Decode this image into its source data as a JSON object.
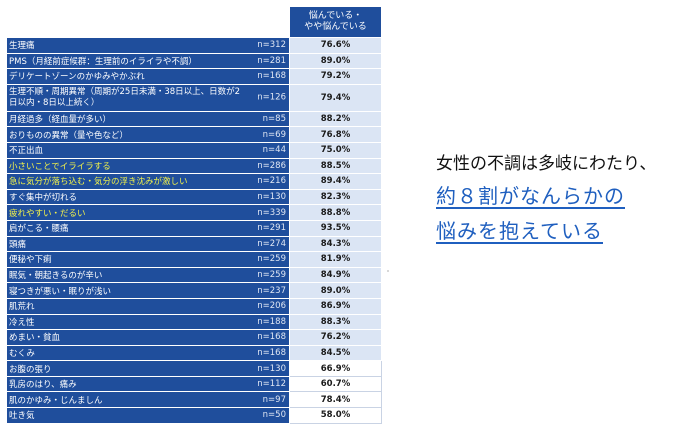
{
  "table": {
    "header": "悩んでいる・\nやや悩んでいる",
    "rows": [
      {
        "label": "生理痛",
        "n": "n=312",
        "value": "76.6%",
        "highlight": false,
        "shaded": true
      },
      {
        "label": "PMS（月経前症候群：生理前のイライラや不調）",
        "n": "n=281",
        "value": "89.0%",
        "highlight": false,
        "shaded": true
      },
      {
        "label": "デリケートゾーンのかゆみやかぶれ",
        "n": "n=168",
        "value": "79.2%",
        "highlight": false,
        "shaded": true
      },
      {
        "label": "生理不順・周期異常（周期が25日未満・38日以上、日数が2日以内・8日以上続く）",
        "n": "n=126",
        "value": "79.4%",
        "highlight": false,
        "shaded": true,
        "tall": true
      },
      {
        "label": "月経過多（経血量が多い）",
        "n": "n=85",
        "value": "88.2%",
        "highlight": false,
        "shaded": true
      },
      {
        "label": "おりものの異常（量や色など）",
        "n": "n=69",
        "value": "76.8%",
        "highlight": false,
        "shaded": true
      },
      {
        "label": "不正出血",
        "n": "n=44",
        "value": "75.0%",
        "highlight": false,
        "shaded": true
      },
      {
        "label": "小さいことでイライラする",
        "n": "n=286",
        "value": "88.5%",
        "highlight": true,
        "shaded": true
      },
      {
        "label": "急に気分が落ち込む・気分の浮き沈みが激しい",
        "n": "n=216",
        "value": "89.4%",
        "highlight": true,
        "shaded": true
      },
      {
        "label": "すぐ集中が切れる",
        "n": "n=130",
        "value": "82.3%",
        "highlight": false,
        "shaded": true
      },
      {
        "label": "疲れやすい・だるい",
        "n": "n=339",
        "value": "88.8%",
        "highlight": true,
        "shaded": true
      },
      {
        "label": "肩がこる・腰痛",
        "n": "n=291",
        "value": "93.5%",
        "highlight": false,
        "shaded": true
      },
      {
        "label": "頭痛",
        "n": "n=274",
        "value": "84.3%",
        "highlight": false,
        "shaded": true
      },
      {
        "label": "便秘や下痢",
        "n": "n=259",
        "value": "81.9%",
        "highlight": false,
        "shaded": true
      },
      {
        "label": "眠気・朝起きるのが辛い",
        "n": "n=259",
        "value": "84.9%",
        "highlight": false,
        "shaded": true
      },
      {
        "label": "寝つきが悪い・眠りが浅い",
        "n": "n=237",
        "value": "89.0%",
        "highlight": false,
        "shaded": true
      },
      {
        "label": "肌荒れ",
        "n": "n=206",
        "value": "86.9%",
        "highlight": false,
        "shaded": true
      },
      {
        "label": "冷え性",
        "n": "n=188",
        "value": "88.3%",
        "highlight": false,
        "shaded": true
      },
      {
        "label": "めまい・貧血",
        "n": "n=168",
        "value": "76.2%",
        "highlight": false,
        "shaded": true
      },
      {
        "label": "むくみ",
        "n": "n=168",
        "value": "84.5%",
        "highlight": false,
        "shaded": true
      },
      {
        "label": "お腹の張り",
        "n": "n=130",
        "value": "66.9%",
        "highlight": false,
        "shaded": false
      },
      {
        "label": "乳房のはり、痛み",
        "n": "n=112",
        "value": "60.7%",
        "highlight": false,
        "shaded": false
      },
      {
        "label": "肌のかゆみ・じんましん",
        "n": "n=97",
        "value": "78.4%",
        "highlight": false,
        "shaded": false
      },
      {
        "label": "吐き気",
        "n": "n=50",
        "value": "58.0%",
        "highlight": false,
        "shaded": false
      }
    ]
  },
  "side": {
    "line1": "女性の不調は多岐にわたり、",
    "line2": "約８割がなんらかの",
    "line3": "悩みを抱えている"
  },
  "colors": {
    "label_bg": "#1f4e9c",
    "highlight_text": "#f2f24a",
    "value_shaded": "#dbe5f4",
    "accent_text": "#1f5fbf"
  }
}
